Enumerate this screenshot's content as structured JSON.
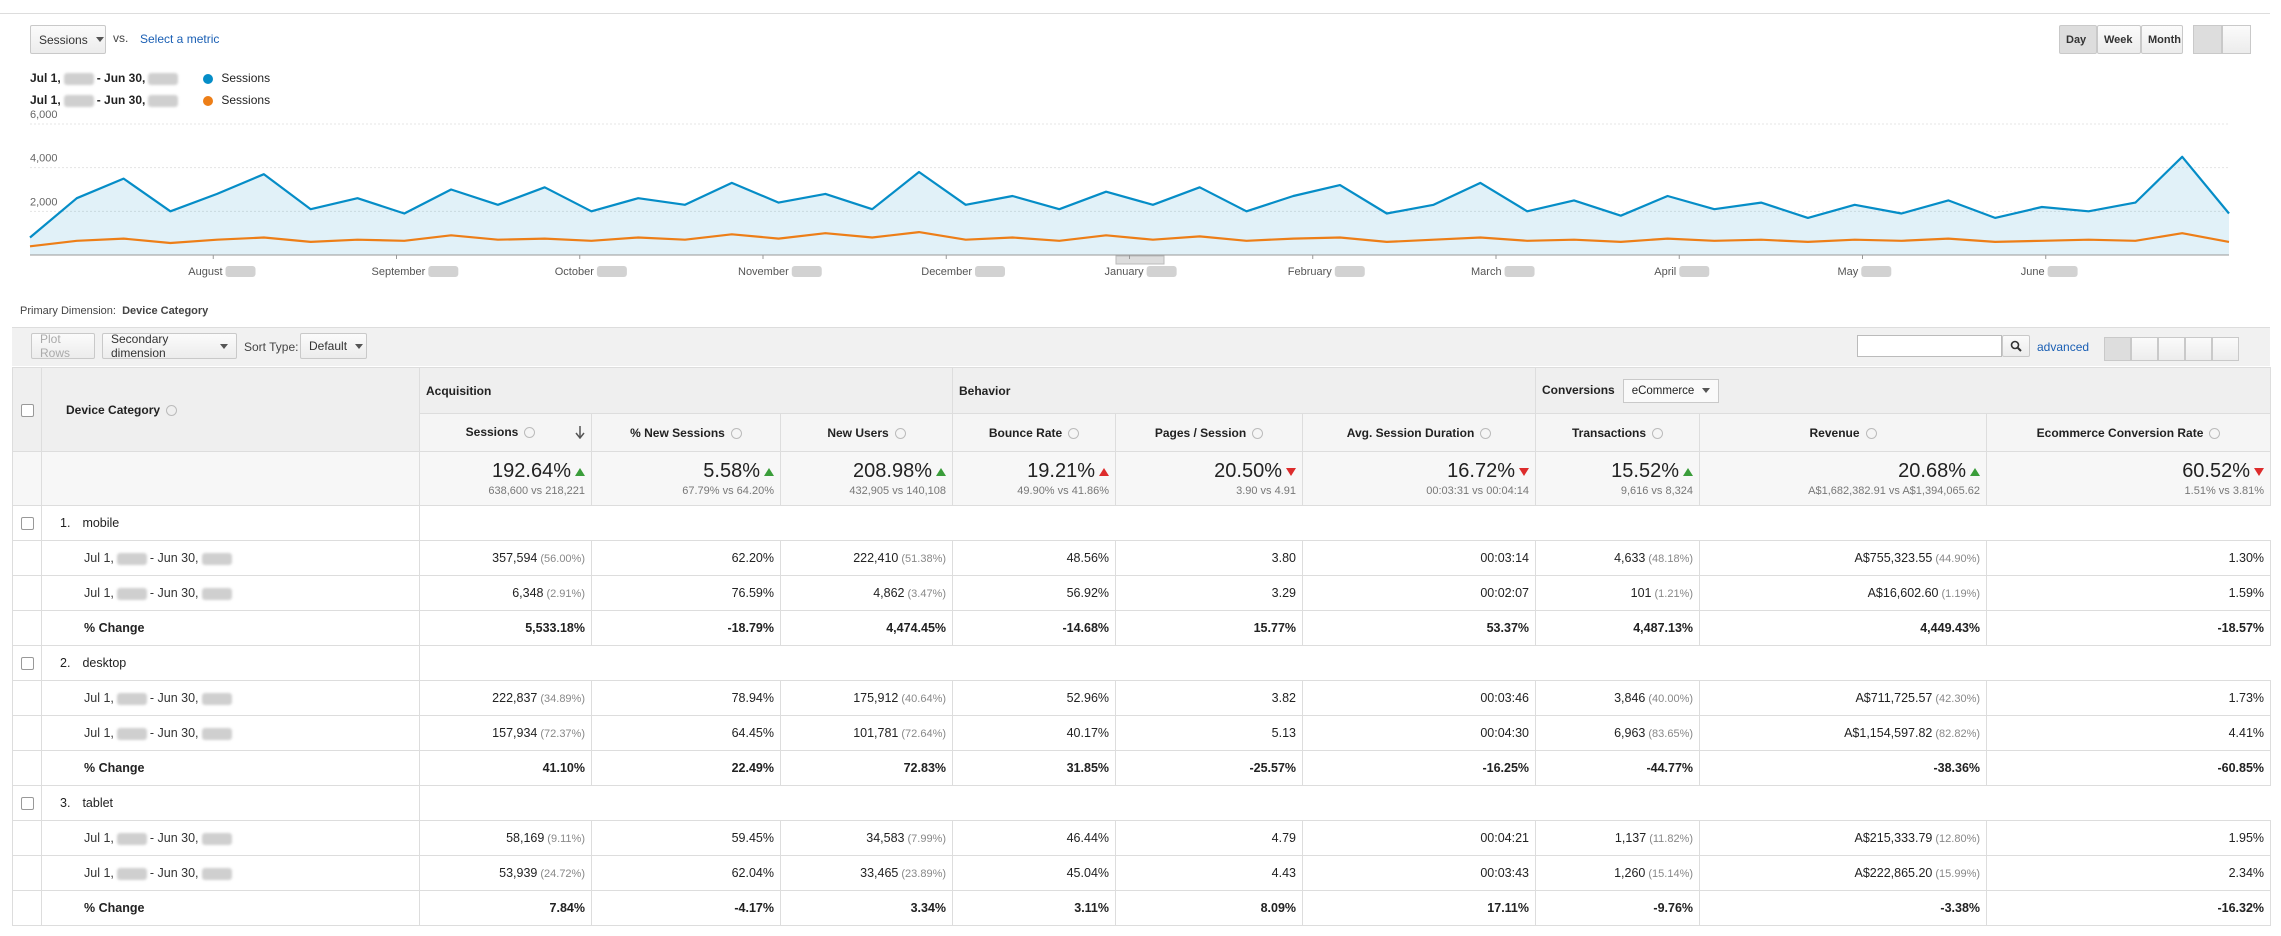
{
  "toolbar": {
    "metric": "Sessions",
    "vs": "vs.",
    "select_metric": "Select a metric",
    "periods": [
      "Day",
      "Week",
      "Month"
    ]
  },
  "dates": {
    "from": "Jul 1,",
    "to": "- Jun 30,"
  },
  "chart_data": {
    "type": "line",
    "ylim": [
      0,
      6000
    ],
    "yticks": [
      {
        "value": 2000,
        "label": "2,000"
      },
      {
        "value": 4000,
        "label": "4,000"
      },
      {
        "value": 6000,
        "label": "6,000"
      }
    ],
    "grid": true,
    "month_labels": [
      "August",
      "September",
      "October",
      "November",
      "December",
      "January",
      "February",
      "March",
      "April",
      "May",
      "June"
    ],
    "series": [
      {
        "name": "Sessions",
        "color": "#058dc7",
        "area": true,
        "values": [
          800,
          2600,
          3500,
          2000,
          2800,
          3700,
          2100,
          2600,
          1900,
          3000,
          2300,
          3100,
          2000,
          2600,
          2300,
          3300,
          2400,
          2800,
          2100,
          3800,
          2300,
          2700,
          2100,
          2900,
          2300,
          3100,
          2000,
          2700,
          3200,
          1900,
          2300,
          3300,
          2000,
          2500,
          1800,
          2700,
          2100,
          2400,
          1700,
          2300,
          1900,
          2500,
          1700,
          2200,
          2000,
          2400,
          4500,
          1900
        ]
      },
      {
        "name": "Sessions",
        "color": "#ed7e17",
        "area": false,
        "values": [
          400,
          650,
          750,
          550,
          700,
          800,
          600,
          700,
          650,
          900,
          700,
          750,
          650,
          800,
          700,
          950,
          750,
          1000,
          800,
          1050,
          700,
          800,
          650,
          900,
          700,
          850,
          650,
          750,
          800,
          600,
          700,
          800,
          650,
          700,
          600,
          750,
          650,
          700,
          600,
          700,
          650,
          750,
          600,
          650,
          700,
          650,
          1000,
          600
        ]
      }
    ]
  },
  "primary_dimension": {
    "label": "Primary Dimension:",
    "value": "Device Category"
  },
  "controls": {
    "plot_rows": "Plot Rows",
    "secondary": "Secondary dimension",
    "sort_label": "Sort Type:",
    "sort": "Default",
    "advanced": "advanced"
  },
  "table": {
    "dimension_header": "Device Category",
    "groups": [
      {
        "name": "Acquisition"
      },
      {
        "name": "Behavior"
      },
      {
        "name": "Conversions",
        "dropdown": "eCommerce"
      }
    ],
    "columns": [
      "Sessions",
      "% New Sessions",
      "New Users",
      "Bounce Rate",
      "Pages / Session",
      "Avg. Session Duration",
      "Transactions",
      "Revenue",
      "Ecommerce Conversion Rate"
    ],
    "summary": [
      {
        "value": "192.64%",
        "dir": "up",
        "good": true,
        "detail": "638,600 vs 218,221"
      },
      {
        "value": "5.58%",
        "dir": "up",
        "good": true,
        "detail": "67.79% vs 64.20%"
      },
      {
        "value": "208.98%",
        "dir": "up",
        "good": true,
        "detail": "432,905 vs 140,108"
      },
      {
        "value": "19.21%",
        "dir": "up",
        "good": false,
        "detail": "49.90% vs 41.86%"
      },
      {
        "value": "20.50%",
        "dir": "down",
        "good": false,
        "detail": "3.90 vs 4.91"
      },
      {
        "value": "16.72%",
        "dir": "down",
        "good": false,
        "detail": "00:03:31 vs 00:04:14"
      },
      {
        "value": "15.52%",
        "dir": "up",
        "good": true,
        "detail": "9,616 vs 8,324"
      },
      {
        "value": "20.68%",
        "dir": "up",
        "good": true,
        "detail": "A$1,682,382.91 vs A$1,394,065.62"
      },
      {
        "value": "60.52%",
        "dir": "down",
        "good": false,
        "detail": "1.51% vs 3.81%"
      }
    ],
    "change_label": "% Change",
    "row_groups": [
      {
        "index": "1.",
        "name": "mobile",
        "rows": [
          [
            {
              "v": "357,594",
              "s": "(56.00%)"
            },
            "62.20%",
            {
              "v": "222,410",
              "s": "(51.38%)"
            },
            "48.56%",
            "3.80",
            "00:03:14",
            {
              "v": "4,633",
              "s": "(48.18%)"
            },
            {
              "v": "A$755,323.55",
              "s": "(44.90%)"
            },
            "1.30%"
          ],
          [
            {
              "v": "6,348",
              "s": "(2.91%)"
            },
            "76.59%",
            {
              "v": "4,862",
              "s": "(3.47%)"
            },
            "56.92%",
            "3.29",
            "00:02:07",
            {
              "v": "101",
              "s": "(1.21%)"
            },
            {
              "v": "A$16,602.60",
              "s": "(1.19%)"
            },
            "1.59%"
          ]
        ],
        "change": [
          "5,533.18%",
          "-18.79%",
          "4,474.45%",
          "-14.68%",
          "15.77%",
          "53.37%",
          "4,487.13%",
          "4,449.43%",
          "-18.57%"
        ]
      },
      {
        "index": "2.",
        "name": "desktop",
        "rows": [
          [
            {
              "v": "222,837",
              "s": "(34.89%)"
            },
            "78.94%",
            {
              "v": "175,912",
              "s": "(40.64%)"
            },
            "52.96%",
            "3.82",
            "00:03:46",
            {
              "v": "3,846",
              "s": "(40.00%)"
            },
            {
              "v": "A$711,725.57",
              "s": "(42.30%)"
            },
            "1.73%"
          ],
          [
            {
              "v": "157,934",
              "s": "(72.37%)"
            },
            "64.45%",
            {
              "v": "101,781",
              "s": "(72.64%)"
            },
            "40.17%",
            "5.13",
            "00:04:30",
            {
              "v": "6,963",
              "s": "(83.65%)"
            },
            {
              "v": "A$1,154,597.82",
              "s": "(82.82%)"
            },
            "4.41%"
          ]
        ],
        "change": [
          "41.10%",
          "22.49%",
          "72.83%",
          "31.85%",
          "-25.57%",
          "-16.25%",
          "-44.77%",
          "-38.36%",
          "-60.85%"
        ]
      },
      {
        "index": "3.",
        "name": "tablet",
        "rows": [
          [
            {
              "v": "58,169",
              "s": "(9.11%)"
            },
            "59.45%",
            {
              "v": "34,583",
              "s": "(7.99%)"
            },
            "46.44%",
            "4.79",
            "00:04:21",
            {
              "v": "1,137",
              "s": "(11.82%)"
            },
            {
              "v": "A$215,333.79",
              "s": "(12.80%)"
            },
            "1.95%"
          ],
          [
            {
              "v": "53,939",
              "s": "(24.72%)"
            },
            "62.04%",
            {
              "v": "33,465",
              "s": "(23.89%)"
            },
            "45.04%",
            "4.43",
            "00:03:43",
            {
              "v": "1,260",
              "s": "(15.14%)"
            },
            {
              "v": "A$222,865.20",
              "s": "(15.99%)"
            },
            "2.34%"
          ]
        ],
        "change": [
          "7.84%",
          "-4.17%",
          "3.34%",
          "3.11%",
          "8.09%",
          "17.11%",
          "-9.76%",
          "-3.38%",
          "-16.32%"
        ]
      }
    ]
  }
}
